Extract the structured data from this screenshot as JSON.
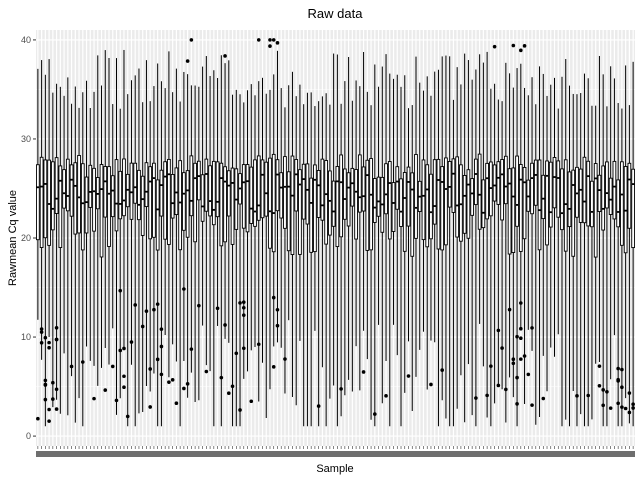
{
  "chart_data": {
    "type": "box",
    "title": "Raw data",
    "xlabel": "Sample",
    "ylabel": "Rawmean Cq value",
    "ylim": [
      -1,
      41
    ],
    "y_ticks": [
      0,
      10,
      20,
      30,
      40
    ],
    "sample_count": 160,
    "grid": true,
    "legend": "none",
    "x_tick_labels": "dense overlapping sample identifiers (unreadable)",
    "typical_box": {
      "q1": 21,
      "median": 24.5,
      "q3": 27,
      "whisker_low": 2,
      "whisker_high": 36
    },
    "outlier_clusters": [
      {
        "sample_range": [
          1,
          6
        ],
        "y_values": [
          11,
          10,
          9,
          5,
          4.5,
          2
        ]
      },
      {
        "sample_range": [
          20,
          40
        ],
        "y_values": [
          14,
          12,
          10,
          8,
          7,
          6,
          4
        ]
      },
      {
        "sample_range": [
          40,
          65
        ],
        "y_values": [
          39,
          40,
          14,
          13,
          12,
          10,
          8,
          6
        ]
      },
      {
        "sample_range": [
          120,
          135
        ],
        "y_values": [
          39,
          13,
          11,
          9,
          8,
          6,
          4
        ]
      },
      {
        "sample_range": [
          150,
          160
        ],
        "y_values": [
          6,
          5,
          4,
          3,
          2.5
        ]
      }
    ],
    "colors": {
      "background": "#ebebeb",
      "grid_major": "#ffffff",
      "box_fill": "#ffffff",
      "box_stroke": "#000000",
      "points": "#000000"
    }
  }
}
